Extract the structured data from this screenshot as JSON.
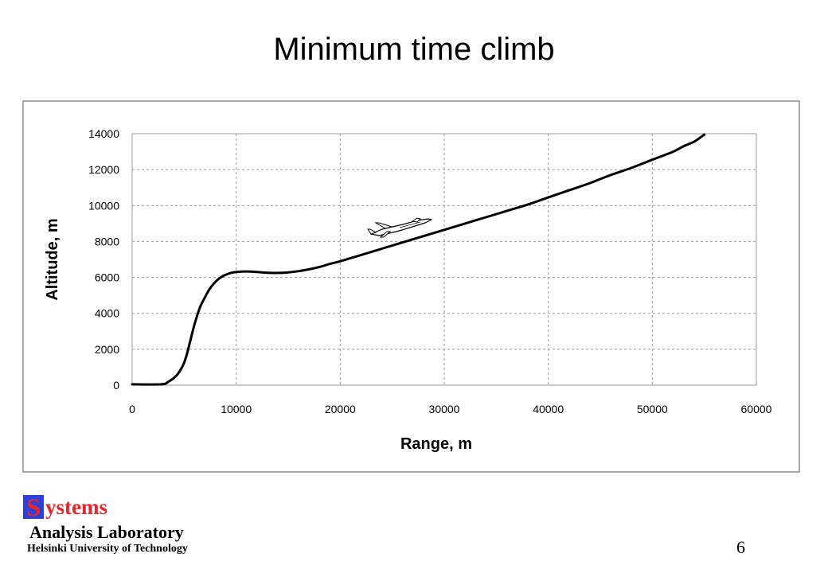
{
  "slide": {
    "title": "Minimum time climb",
    "page_number": "6"
  },
  "footer": {
    "logo_initial": "S",
    "logo_rest": "ystems",
    "lab_name": "Analysis Laboratory",
    "university": "Helsinki University of Technology",
    "colors": {
      "logo_red": "#e6262b",
      "logo_blue": "#2d3fd6",
      "bar_dark": "#0d1030"
    }
  },
  "chart_data": {
    "type": "line",
    "title": "",
    "xlabel": "Range, m",
    "ylabel": "Altitude, m",
    "xlim": [
      0,
      60000
    ],
    "ylim": [
      0,
      14000
    ],
    "xticks": [
      0,
      10000,
      20000,
      30000,
      40000,
      50000,
      60000
    ],
    "yticks": [
      0,
      2000,
      4000,
      6000,
      8000,
      10000,
      12000,
      14000
    ],
    "x_tick_labels": [
      "0",
      "10000",
      "20000",
      "30000",
      "40000",
      "50000",
      "60000"
    ],
    "y_tick_labels": [
      "0",
      "2000",
      "4000",
      "6000",
      "8000",
      "10000",
      "12000",
      "14000"
    ],
    "grid": true,
    "grid_style": "dashed",
    "legend": "none",
    "line_color": "#000000",
    "annotation_icon": "jet-aircraft-icon",
    "series": [
      {
        "x": [
          0,
          2800,
          3500,
          4200,
          4800,
          5200,
          5600,
          6000,
          6500,
          7000,
          7500,
          8000,
          8500,
          9000,
          9500,
          10000,
          11000,
          12000,
          13000,
          14000,
          15000,
          16000,
          17000,
          18000,
          19000,
          20000,
          22000,
          24000,
          26000,
          28000,
          30000,
          32000,
          34000,
          36000,
          38000,
          40000,
          42000,
          44000,
          46000,
          48000,
          50000,
          52000,
          53000,
          54000,
          55000
        ],
        "y": [
          50,
          50,
          200,
          500,
          1000,
          1600,
          2500,
          3400,
          4300,
          4900,
          5400,
          5750,
          6000,
          6150,
          6250,
          6300,
          6330,
          6300,
          6260,
          6250,
          6280,
          6350,
          6450,
          6580,
          6750,
          6900,
          7250,
          7600,
          7950,
          8300,
          8650,
          9000,
          9350,
          9700,
          10050,
          10450,
          10850,
          11250,
          11700,
          12100,
          12550,
          13000,
          13300,
          13550,
          13950
        ]
      }
    ]
  }
}
